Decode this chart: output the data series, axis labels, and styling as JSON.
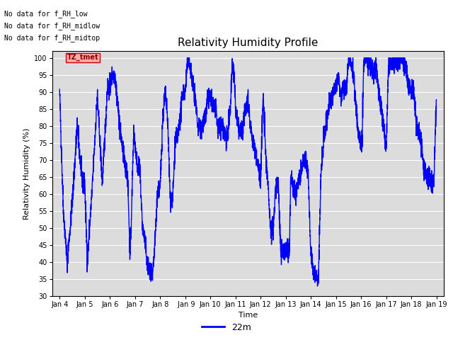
{
  "title": "Relativity Humidity Profile",
  "xlabel": "Time",
  "ylabel": "Relativity Humidity (%)",
  "ylim": [
    30,
    102
  ],
  "yticks": [
    30,
    35,
    40,
    45,
    50,
    55,
    60,
    65,
    70,
    75,
    80,
    85,
    90,
    95,
    100
  ],
  "line_color": "#0000FF",
  "line_width": 1.0,
  "legend_label": "22m",
  "legend_color": "#0000FF",
  "bg_color": "#DCDCDC",
  "annotations": [
    "No data for f_RH_low",
    "No data for f_RH_midlow",
    "No data for f_RH_midtop"
  ],
  "tz_label": "TZ_tmet",
  "x_tick_labels": [
    "Jan 4",
    "Jan 5",
    "Jan 6",
    "Jan 7",
    "Jan 8",
    " Jan 9",
    "Jan 10",
    "Jan 11",
    "Jan 12",
    "Jan 13",
    "Jan 14",
    "Jan 15",
    "Jan 16",
    "Jan 17",
    "Jan 18",
    "Jan 19"
  ],
  "num_points": 3600,
  "seed": 42
}
